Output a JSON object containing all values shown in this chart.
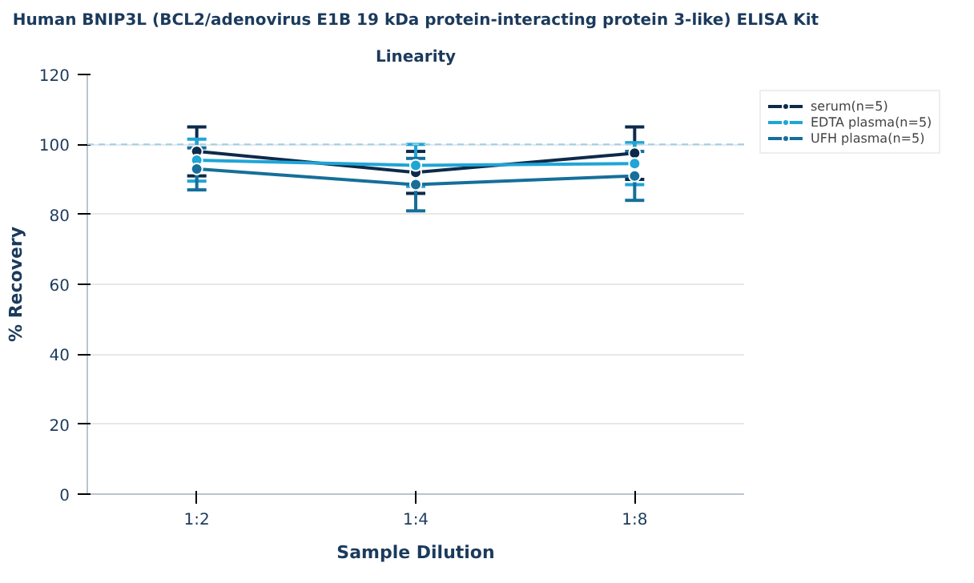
{
  "chart_data": {
    "type": "line",
    "title": "Human BNIP3L (BCL2/adenovirus E1B 19 kDa protein-interacting protein 3-like) ELISA Kit",
    "subtitle": "Linearity",
    "xlabel": "Sample Dilution",
    "ylabel": "% Recovery",
    "categories": [
      "1:2",
      "1:4",
      "1:8"
    ],
    "series": [
      {
        "name": "serum(n=5)",
        "color": "#0d2a4a",
        "values": [
          98,
          92,
          97.5
        ],
        "errors": [
          7,
          6,
          7.5
        ]
      },
      {
        "name": "EDTA plasma(n=5)",
        "color": "#1fa5d6",
        "values": [
          95.5,
          94,
          94.5
        ],
        "errors": [
          6,
          6,
          6
        ]
      },
      {
        "name": "UFH plasma(n=5)",
        "color": "#156f9a",
        "values": [
          93,
          88.5,
          91
        ],
        "errors": [
          6,
          7.5,
          7
        ]
      }
    ],
    "ylim": [
      0,
      120
    ],
    "yticks": [
      0,
      20,
      40,
      60,
      80,
      100,
      120
    ],
    "grid": "y",
    "legend": "top right",
    "marker": "circle",
    "line_style": "solid",
    "ref_lines": [
      {
        "axis": "y",
        "value": 100,
        "label": null,
        "color": "#9fd0e6",
        "line_style": "dashed"
      }
    ]
  }
}
